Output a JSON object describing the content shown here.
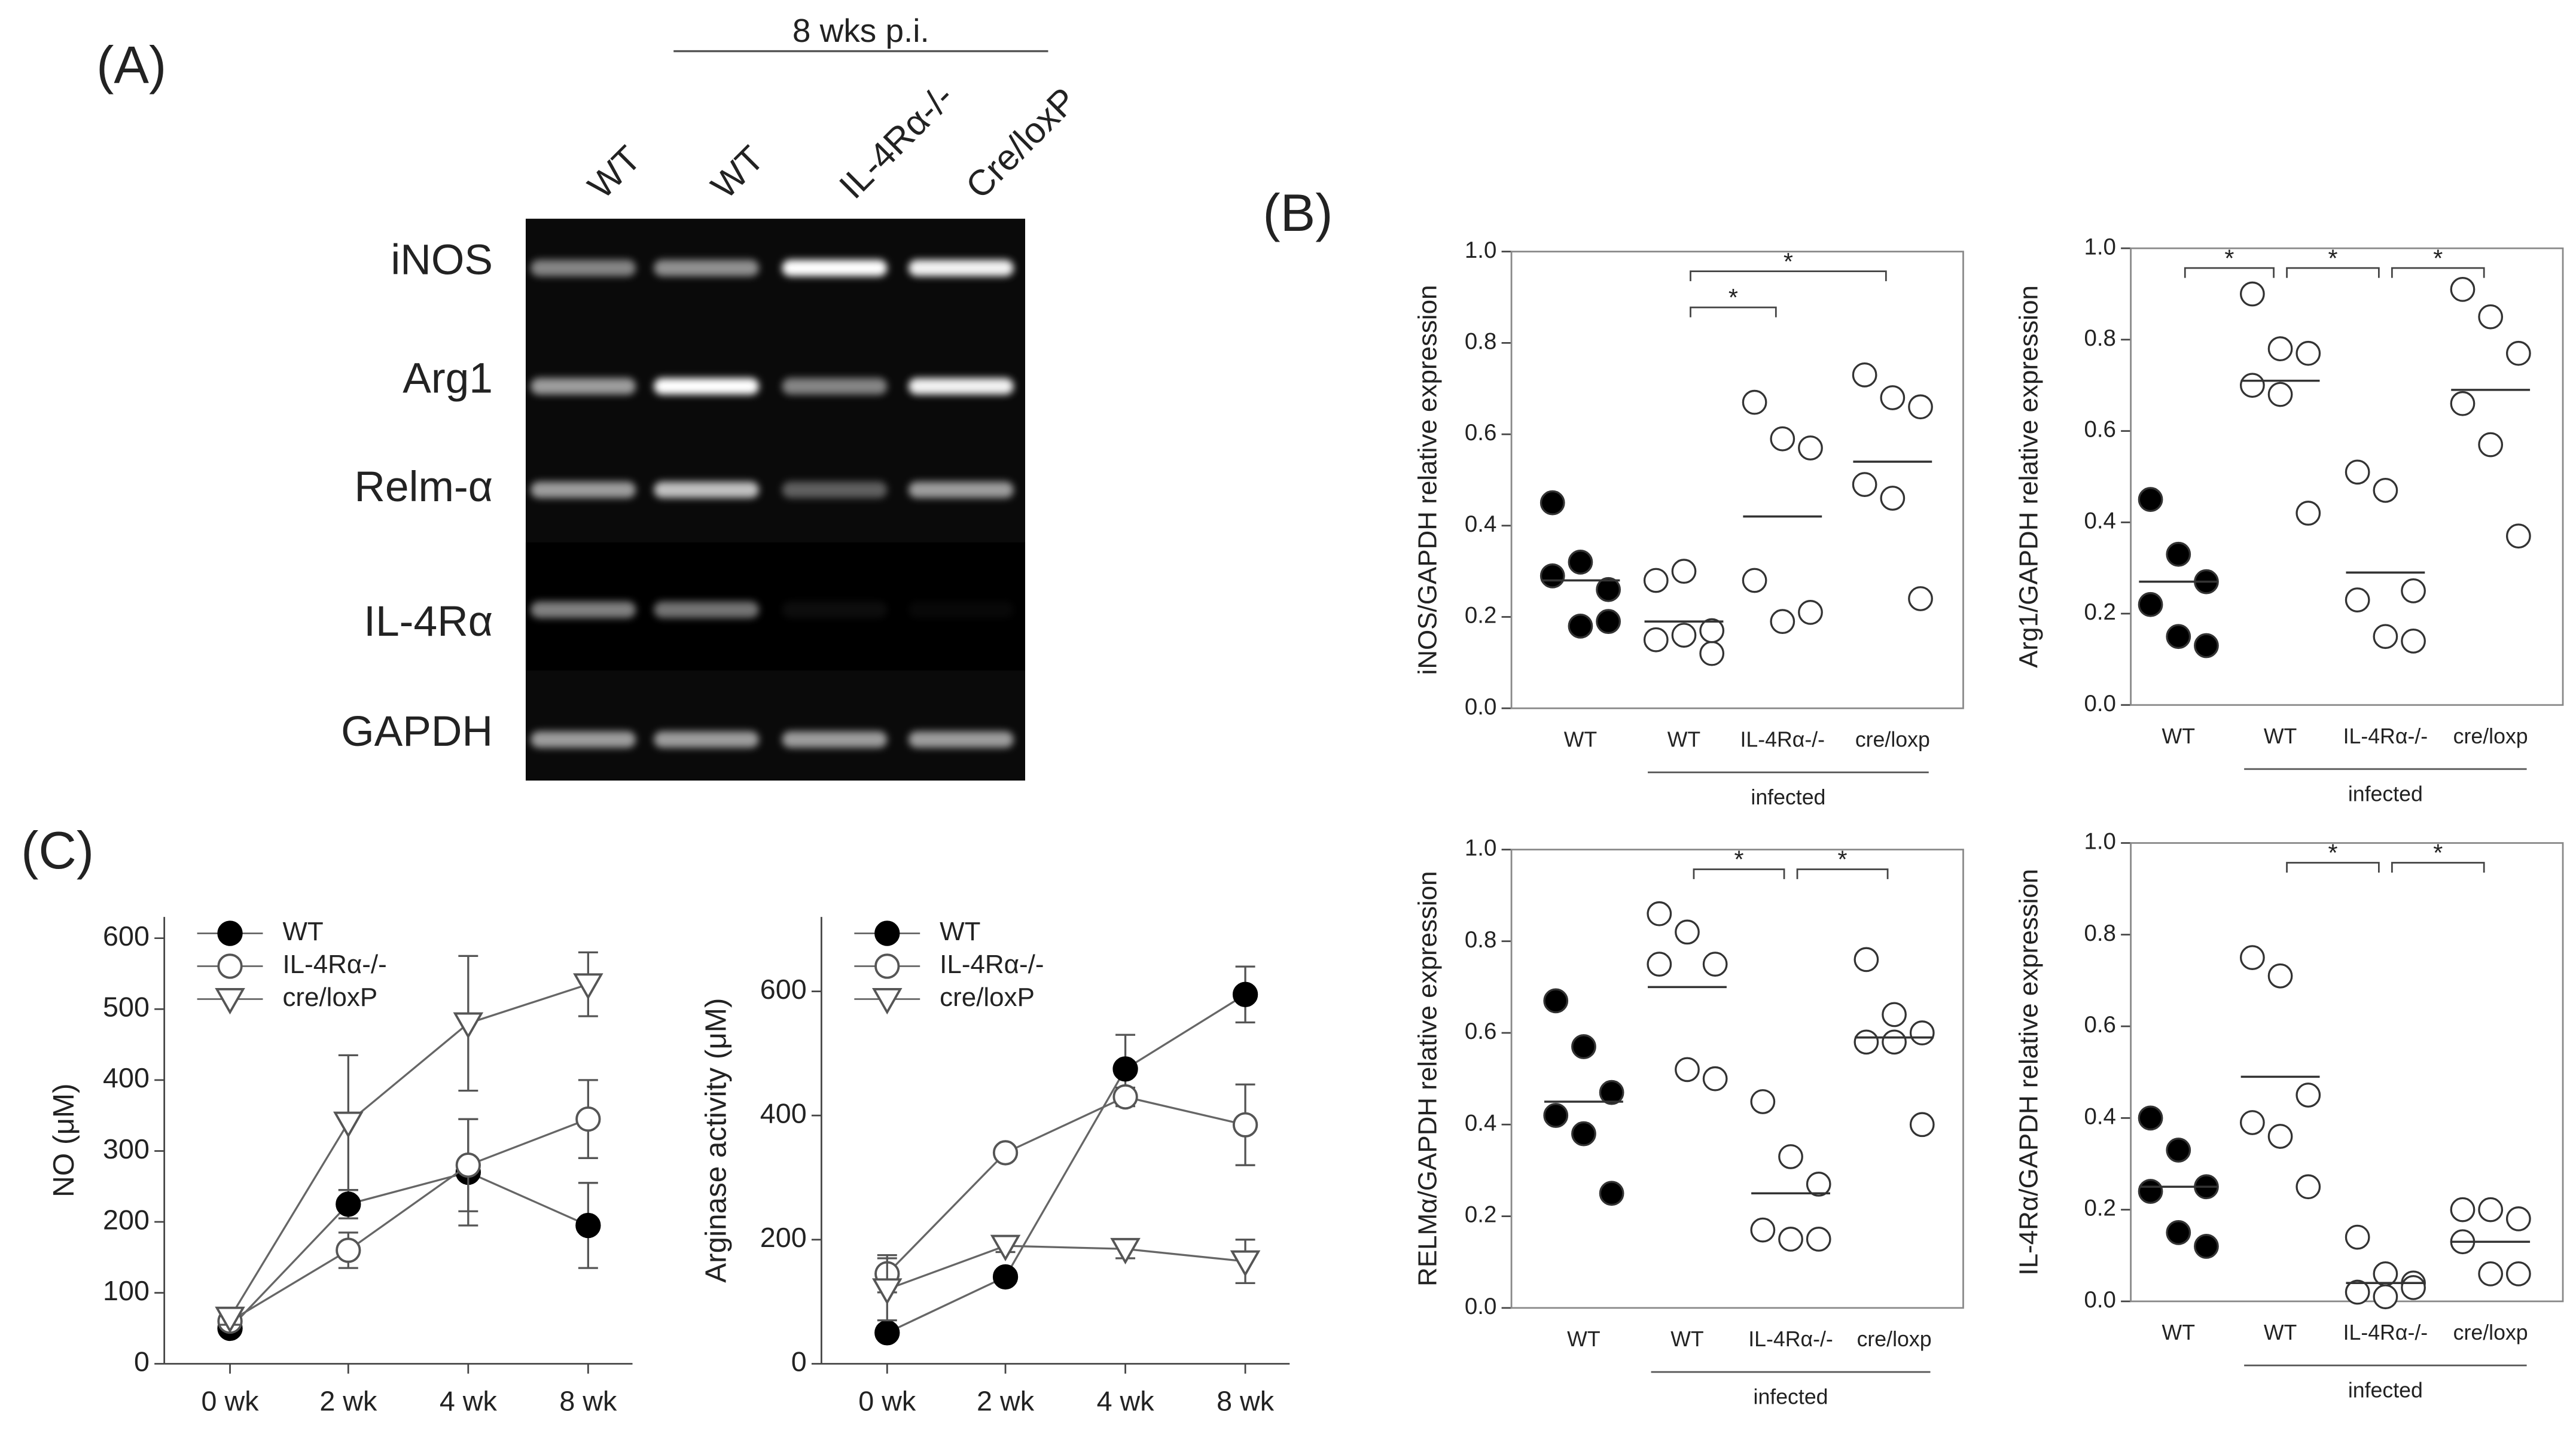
{
  "panels": {
    "a": "(A)",
    "b": "(B)",
    "c": "(C)"
  },
  "gel": {
    "timepoint": "8 wks p.i.",
    "lanes": [
      "WT",
      "WT",
      "IL-4Rα-/-",
      "Cre/loxP"
    ],
    "rows": [
      "iNOS",
      "Arg1",
      "Relm-α",
      "IL-4Rα",
      "GAPDH"
    ]
  },
  "chart_data": [
    {
      "type": "dot",
      "ylabel": "iNOS/GAPDH relative expression",
      "categories": [
        "WT",
        "WT",
        "IL-4Rα-/-",
        "cre/loxp"
      ],
      "group_label": "infected",
      "ylim": [
        0,
        1
      ],
      "yticks": [
        {
          "value": 0,
          "label": "0.0"
        },
        0.2,
        0.4,
        0.6,
        0.8,
        {
          "value": 1,
          "label": "1.0"
        }
      ],
      "fills": [
        "#000000",
        "#ffffff",
        "#ffffff",
        "#ffffff"
      ],
      "values": [
        [
          0.45,
          0.32,
          0.26,
          0.29,
          0.18,
          0.19
        ],
        [
          0.28,
          0.3,
          0.12,
          0.15,
          0.16,
          0.17
        ],
        [
          0.67,
          0.59,
          0.57,
          0.28,
          0.19,
          0.21
        ],
        [
          0.73,
          0.68,
          0.66,
          0.49,
          0.46,
          0.24
        ]
      ],
      "means": [
        0.28,
        0.19,
        0.42,
        0.54
      ],
      "significance": [
        {
          "label": "*",
          "from": 1,
          "to": 2
        },
        {
          "label": "*",
          "from": 1,
          "to": 3
        }
      ]
    },
    {
      "type": "dot",
      "ylabel": "Arg1/GAPDH relative expression",
      "categories": [
        "WT",
        "WT",
        "IL-4Rα-/-",
        "cre/loxp"
      ],
      "group_label": "infected",
      "ylim": [
        0,
        1
      ],
      "yticks": [
        {
          "value": 0,
          "label": "0.0"
        },
        0.2,
        0.4,
        0.6,
        0.8,
        {
          "value": 1,
          "label": "1.0"
        }
      ],
      "fills": [
        "#000000",
        "#ffffff",
        "#ffffff",
        "#ffffff"
      ],
      "values": [
        [
          0.45,
          0.33,
          0.27,
          0.22,
          0.15,
          0.13
        ],
        [
          0.9,
          0.78,
          0.77,
          0.7,
          0.68,
          0.42
        ],
        [
          0.51,
          0.47,
          0.25,
          0.23,
          0.15,
          0.14
        ],
        [
          0.91,
          0.85,
          0.77,
          0.66,
          0.57,
          0.37
        ]
      ],
      "means": [
        0.27,
        0.71,
        0.29,
        0.69
      ],
      "significance": [
        {
          "label": "*",
          "from": 0,
          "to": 1
        },
        {
          "label": "*",
          "from": 1,
          "to": 2
        },
        {
          "label": "*",
          "from": 2,
          "to": 3
        }
      ]
    },
    {
      "type": "dot",
      "ylabel": "RELMα/GAPDH relative expression",
      "categories": [
        "WT",
        "WT",
        "IL-4Rα-/-",
        "cre/loxp"
      ],
      "group_label": "infected",
      "ylim": [
        0,
        1
      ],
      "yticks": [
        {
          "value": 0,
          "label": "0.0"
        },
        0.2,
        0.4,
        0.6,
        0.8,
        {
          "value": 1,
          "label": "1.0"
        }
      ],
      "fills": [
        "#000000",
        "#ffffff",
        "#ffffff",
        "#ffffff"
      ],
      "values": [
        [
          0.67,
          0.57,
          0.47,
          0.42,
          0.38,
          0.25
        ],
        [
          0.86,
          0.82,
          0.75,
          0.75,
          0.52,
          0.5
        ],
        [
          0.45,
          0.33,
          0.27,
          0.17,
          0.15,
          0.15
        ],
        [
          0.76,
          0.64,
          0.6,
          0.58,
          0.58,
          0.4
        ]
      ],
      "means": [
        0.45,
        0.7,
        0.25,
        0.59
      ],
      "significance": [
        {
          "label": "*",
          "from": 1,
          "to": 2
        },
        {
          "label": "*",
          "from": 2,
          "to": 3
        }
      ]
    },
    {
      "type": "dot",
      "ylabel": "IL-4Rα/GAPDH relative expression",
      "categories": [
        "WT",
        "WT",
        "IL-4Rα-/-",
        "cre/loxp"
      ],
      "group_label": "infected",
      "ylim": [
        0,
        1
      ],
      "yticks": [
        {
          "value": 0,
          "label": "0.0"
        },
        0.2,
        0.4,
        0.6,
        0.8,
        {
          "value": 1,
          "label": "1.0"
        }
      ],
      "fills": [
        "#000000",
        "#ffffff",
        "#ffffff",
        "#ffffff"
      ],
      "values": [
        [
          0.4,
          0.33,
          0.25,
          0.24,
          0.15,
          0.12
        ],
        [
          0.75,
          0.71,
          0.45,
          0.39,
          0.36,
          0.25
        ],
        [
          0.14,
          0.06,
          0.04,
          0.02,
          0.01,
          0.03
        ],
        [
          0.2,
          0.2,
          0.18,
          0.13,
          0.06,
          0.06
        ]
      ],
      "means": [
        0.25,
        0.49,
        0.04,
        0.13
      ],
      "significance": [
        {
          "label": "*",
          "from": 1,
          "to": 2
        },
        {
          "label": "*",
          "from": 2,
          "to": 3
        }
      ]
    },
    {
      "type": "line",
      "ylabel": "NO (μM)",
      "categories": [
        "0 wk",
        "2 wk",
        "4 wk",
        "8 wk"
      ],
      "ylim": [
        0,
        630
      ],
      "yticks": [
        0,
        100,
        200,
        300,
        400,
        500,
        600
      ],
      "legend": "upper-left",
      "series": [
        {
          "name": "WT",
          "marker": "filled-circle",
          "color": "#000000",
          "values": [
            50,
            225,
            270,
            195
          ],
          "errors": [
            10,
            20,
            75,
            60
          ]
        },
        {
          "name": "IL-4Rα-/-",
          "marker": "open-circle",
          "color": "#555555",
          "values": [
            60,
            160,
            280,
            345
          ],
          "errors": [
            10,
            25,
            65,
            55
          ]
        },
        {
          "name": "cre/loxP",
          "marker": "open-triangle",
          "color": "#555555",
          "values": [
            65,
            340,
            480,
            535
          ],
          "errors": [
            10,
            95,
            95,
            45
          ]
        }
      ]
    },
    {
      "type": "line",
      "ylabel": "Arginase activity (μM)",
      "categories": [
        "0 wk",
        "2 wk",
        "4 wk",
        "8 wk"
      ],
      "ylim": [
        0,
        720
      ],
      "yticks": [
        0,
        200,
        400,
        600
      ],
      "legend": "upper-left",
      "series": [
        {
          "name": "WT",
          "marker": "filled-circle",
          "color": "#000000",
          "values": [
            50,
            140,
            475,
            595
          ],
          "errors": [
            5,
            10,
            55,
            45
          ]
        },
        {
          "name": "IL-4Rα-/-",
          "marker": "open-circle",
          "color": "#555555",
          "values": [
            145,
            340,
            430,
            385
          ],
          "errors": [
            30,
            10,
            15,
            65
          ]
        },
        {
          "name": "cre/loxP",
          "marker": "open-triangle",
          "color": "#555555",
          "values": [
            120,
            190,
            185,
            165
          ],
          "errors": [
            50,
            10,
            15,
            35
          ]
        }
      ]
    }
  ]
}
